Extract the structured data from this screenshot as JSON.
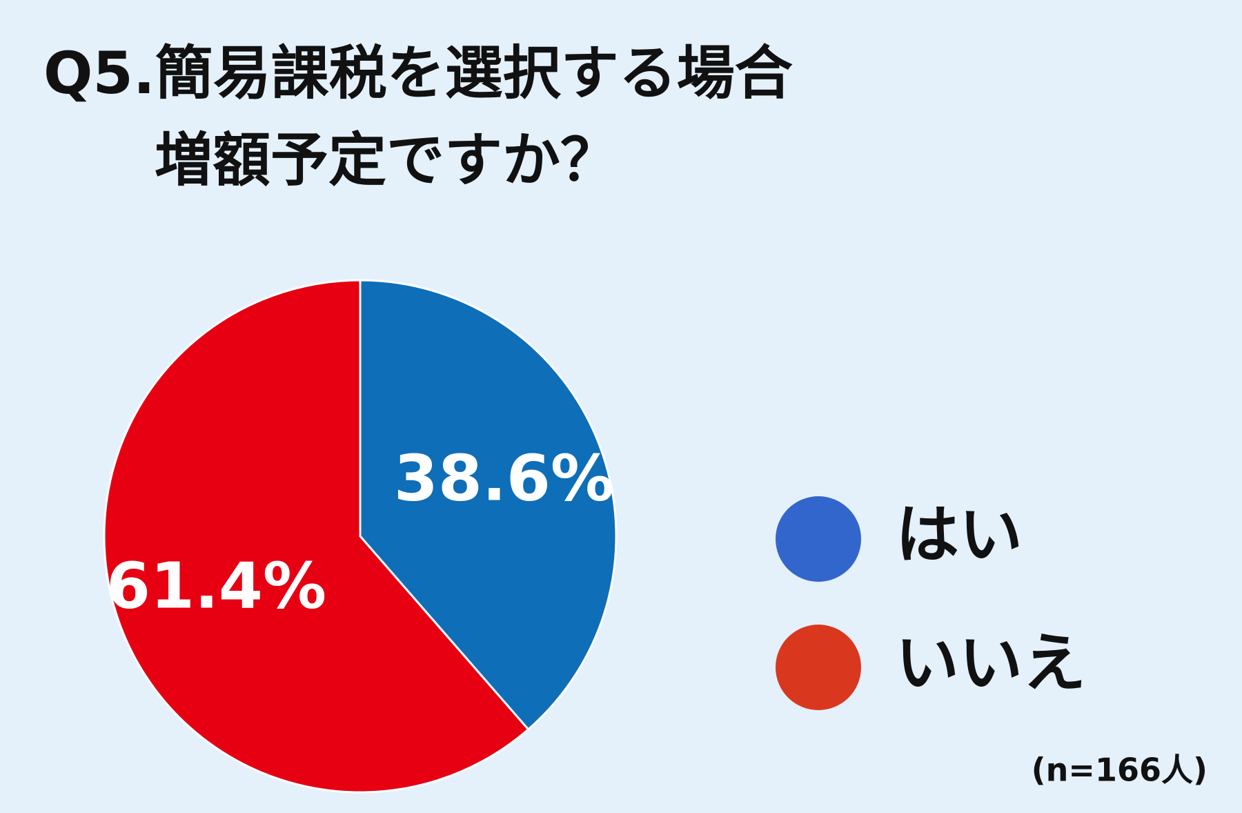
{
  "chart_data": {
    "type": "pie",
    "title": [
      "Q5.簡易課税を選択する場合",
      "増額予定ですか？"
    ],
    "categories": [
      "はい",
      "いいえ"
    ],
    "values": [
      38.6,
      61.4
    ],
    "value_labels": [
      "38.6%",
      "61.4%"
    ],
    "colors": [
      "#0e6eb8",
      "#e60012"
    ],
    "legend_colors": [
      "#3366cc",
      "#d9381e"
    ],
    "note": "(n=166人)"
  }
}
